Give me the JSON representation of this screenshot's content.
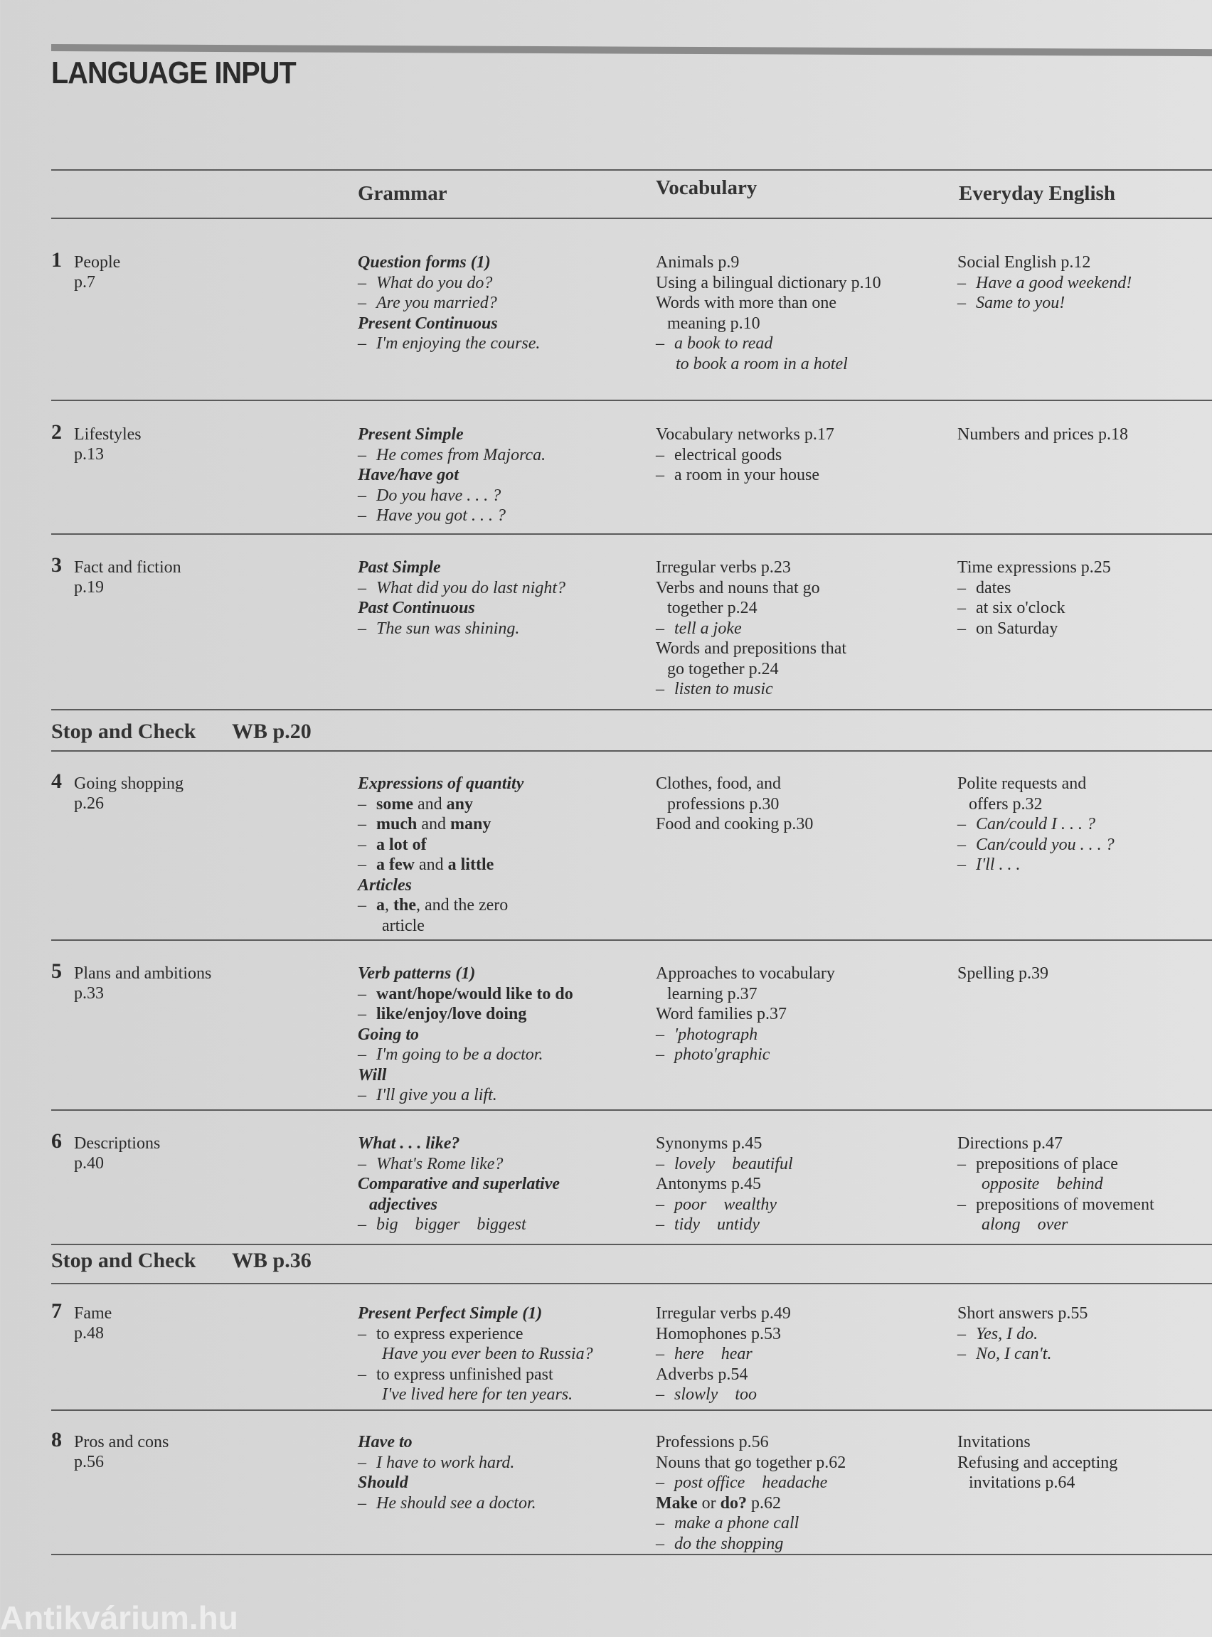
{
  "title": "LANGUAGE INPUT",
  "headers": {
    "grammar": "Grammar",
    "vocabulary": "Vocabulary",
    "everyday": "Everyday English"
  },
  "watermark": "Antikvárium.hu",
  "units": [
    {
      "num": "1",
      "title": "People",
      "page": "p.7",
      "grammar": [
        {
          "p": [
            [
              "Question forms (1)",
              "bi"
            ]
          ]
        },
        {
          "d": true,
          "p": [
            [
              "What do you do?",
              "i"
            ]
          ]
        },
        {
          "d": true,
          "p": [
            [
              "Are you married?",
              "i"
            ]
          ]
        },
        {
          "p": [
            [
              "Present Continuous",
              "bi"
            ]
          ]
        },
        {
          "d": true,
          "p": [
            [
              "I'm enjoying the course.",
              "i"
            ]
          ]
        }
      ],
      "vocabulary": [
        {
          "p": [
            [
              "Animals p.9",
              "n"
            ]
          ]
        },
        {
          "p": [
            [
              "Using a bilingual dictionary p.10",
              "n"
            ]
          ]
        },
        {
          "p": [
            [
              "Words with more than one",
              "n"
            ]
          ]
        },
        {
          "in": true,
          "p": [
            [
              "meaning p.10",
              "n"
            ]
          ]
        },
        {
          "d": true,
          "p": [
            [
              "a book to read",
              "i"
            ]
          ]
        },
        {
          "in": true,
          "p": [
            [
              "  to book a room in a hotel",
              "i"
            ]
          ]
        }
      ],
      "everyday": [
        {
          "p": [
            [
              "Social English p.12",
              "n"
            ]
          ]
        },
        {
          "d": true,
          "p": [
            [
              "Have a good weekend!",
              "i"
            ]
          ]
        },
        {
          "d": true,
          "p": [
            [
              "Same to you!",
              "i"
            ]
          ]
        }
      ]
    },
    {
      "num": "2",
      "title": "Lifestyles",
      "page": "p.13",
      "grammar": [
        {
          "p": [
            [
              "Present Simple",
              "bi"
            ]
          ]
        },
        {
          "d": true,
          "p": [
            [
              "He comes from Majorca.",
              "i"
            ]
          ]
        },
        {
          "p": [
            [
              "Have/have got",
              "bi"
            ]
          ]
        },
        {
          "d": true,
          "p": [
            [
              "Do you have . . . ?",
              "i"
            ]
          ]
        },
        {
          "d": true,
          "p": [
            [
              "Have you got . . . ?",
              "i"
            ]
          ]
        }
      ],
      "vocabulary": [
        {
          "p": [
            [
              "Vocabulary networks p.17",
              "n"
            ]
          ]
        },
        {
          "d": true,
          "p": [
            [
              "electrical goods",
              "n"
            ]
          ]
        },
        {
          "d": true,
          "p": [
            [
              "a room in your house",
              "n"
            ]
          ]
        }
      ],
      "everyday": [
        {
          "p": [
            [
              "Numbers and prices p.18",
              "n"
            ]
          ]
        }
      ]
    },
    {
      "num": "3",
      "title": "Fact and fiction",
      "page": "p.19",
      "grammar": [
        {
          "p": [
            [
              "Past Simple",
              "bi"
            ]
          ]
        },
        {
          "d": true,
          "p": [
            [
              "What did you do last night?",
              "i"
            ]
          ]
        },
        {
          "p": [
            [
              "Past Continuous",
              "bi"
            ]
          ]
        },
        {
          "d": true,
          "p": [
            [
              "The sun was shining.",
              "i"
            ]
          ]
        }
      ],
      "vocabulary": [
        {
          "p": [
            [
              "Irregular verbs p.23",
              "n"
            ]
          ]
        },
        {
          "p": [
            [
              "Verbs and nouns that go",
              "n"
            ]
          ]
        },
        {
          "in": true,
          "p": [
            [
              "together p.24",
              "n"
            ]
          ]
        },
        {
          "d": true,
          "p": [
            [
              "tell a joke",
              "i"
            ]
          ]
        },
        {
          "p": [
            [
              "Words and prepositions that",
              "n"
            ]
          ]
        },
        {
          "in": true,
          "p": [
            [
              "go together p.24",
              "n"
            ]
          ]
        },
        {
          "d": true,
          "p": [
            [
              "listen to music",
              "i"
            ]
          ]
        }
      ],
      "everyday": [
        {
          "p": [
            [
              "Time expressions p.25",
              "n"
            ]
          ]
        },
        {
          "d": true,
          "p": [
            [
              "dates",
              "n"
            ]
          ]
        },
        {
          "d": true,
          "p": [
            [
              "at six o'clock",
              "n"
            ]
          ]
        },
        {
          "d": true,
          "p": [
            [
              "on Saturday",
              "n"
            ]
          ]
        }
      ]
    },
    {
      "num": "4",
      "title": "Going shopping",
      "page": "p.26",
      "grammar": [
        {
          "p": [
            [
              "Expressions of quantity",
              "bi"
            ]
          ]
        },
        {
          "d": true,
          "p": [
            [
              "some",
              "b"
            ],
            [
              " and ",
              "n"
            ],
            [
              "any",
              "b"
            ]
          ]
        },
        {
          "d": true,
          "p": [
            [
              "much",
              "b"
            ],
            [
              " and ",
              "n"
            ],
            [
              "many",
              "b"
            ]
          ]
        },
        {
          "d": true,
          "p": [
            [
              "a lot of",
              "b"
            ]
          ]
        },
        {
          "d": true,
          "p": [
            [
              "a few",
              "b"
            ],
            [
              " and ",
              "n"
            ],
            [
              "a little",
              "b"
            ]
          ]
        },
        {
          "p": [
            [
              "Articles",
              "bi"
            ]
          ]
        },
        {
          "d": true,
          "p": [
            [
              "a",
              "b"
            ],
            [
              ", ",
              "n"
            ],
            [
              "the",
              "b"
            ],
            [
              ", and the zero",
              "n"
            ]
          ]
        },
        {
          "in": true,
          "p": [
            [
              "   article",
              "n"
            ]
          ]
        }
      ],
      "vocabulary": [
        {
          "p": [
            [
              "Clothes, food, and",
              "n"
            ]
          ]
        },
        {
          "in": true,
          "p": [
            [
              "professions p.30",
              "n"
            ]
          ]
        },
        {
          "p": [
            [
              "Food and cooking p.30",
              "n"
            ]
          ]
        }
      ],
      "everyday": [
        {
          "p": [
            [
              "Polite requests and",
              "n"
            ]
          ]
        },
        {
          "in": true,
          "p": [
            [
              "offers p.32",
              "n"
            ]
          ]
        },
        {
          "d": true,
          "p": [
            [
              "Can/could I . . . ?",
              "i"
            ]
          ]
        },
        {
          "d": true,
          "p": [
            [
              "Can/could you . . . ?",
              "i"
            ]
          ]
        },
        {
          "d": true,
          "p": [
            [
              "I'll . . .",
              "i"
            ]
          ]
        }
      ]
    },
    {
      "num": "5",
      "title": "Plans and ambitions",
      "page": "p.33",
      "grammar": [
        {
          "p": [
            [
              "Verb patterns (1)",
              "bi"
            ]
          ]
        },
        {
          "d": true,
          "p": [
            [
              "want/hope/would like to do",
              "b"
            ]
          ]
        },
        {
          "d": true,
          "p": [
            [
              "like/enjoy/love doing",
              "b"
            ]
          ]
        },
        {
          "p": [
            [
              "Going to",
              "bi"
            ]
          ]
        },
        {
          "d": true,
          "p": [
            [
              "I'm going to be a doctor.",
              "i"
            ]
          ]
        },
        {
          "p": [
            [
              "Will",
              "bi"
            ]
          ]
        },
        {
          "d": true,
          "p": [
            [
              "I'll give you a lift.",
              "i"
            ]
          ]
        }
      ],
      "vocabulary": [
        {
          "p": [
            [
              "Approaches to vocabulary",
              "n"
            ]
          ]
        },
        {
          "in": true,
          "p": [
            [
              "learning p.37",
              "n"
            ]
          ]
        },
        {
          "p": [
            [
              "Word families p.37",
              "n"
            ]
          ]
        },
        {
          "d": true,
          "p": [
            [
              "'photograph",
              "i"
            ]
          ]
        },
        {
          "d": true,
          "p": [
            [
              "photo'graphic",
              "i"
            ]
          ]
        }
      ],
      "everyday": [
        {
          "p": [
            [
              "Spelling p.39",
              "n"
            ]
          ]
        }
      ]
    },
    {
      "num": "6",
      "title": "Descriptions",
      "page": "p.40",
      "grammar": [
        {
          "p": [
            [
              "What . . . like?",
              "bi"
            ]
          ]
        },
        {
          "d": true,
          "p": [
            [
              "What's Rome like?",
              "i"
            ]
          ]
        },
        {
          "p": [
            [
              "Comparative and superlative",
              "bi"
            ]
          ]
        },
        {
          "in": true,
          "p": [
            [
              "adjectives",
              "bi"
            ]
          ]
        },
        {
          "d": true,
          "p": [
            [
              "big    bigger    biggest",
              "i"
            ]
          ]
        }
      ],
      "vocabulary": [
        {
          "p": [
            [
              "Synonyms p.45",
              "n"
            ]
          ]
        },
        {
          "d": true,
          "p": [
            [
              "lovely    beautiful",
              "i"
            ]
          ]
        },
        {
          "p": [
            [
              "Antonyms p.45",
              "n"
            ]
          ]
        },
        {
          "d": true,
          "p": [
            [
              "poor    wealthy",
              "i"
            ]
          ]
        },
        {
          "d": true,
          "p": [
            [
              "tidy    untidy",
              "i"
            ]
          ]
        }
      ],
      "everyday": [
        {
          "p": [
            [
              "Directions p.47",
              "n"
            ]
          ]
        },
        {
          "d": true,
          "p": [
            [
              "prepositions of place",
              "n"
            ]
          ]
        },
        {
          "in": true,
          "p": [
            [
              "   opposite    behind",
              "i"
            ]
          ]
        },
        {
          "d": true,
          "p": [
            [
              "prepositions of movement",
              "n"
            ]
          ]
        },
        {
          "in": true,
          "p": [
            [
              "   along    over",
              "i"
            ]
          ]
        }
      ]
    },
    {
      "num": "7",
      "title": "Fame",
      "page": "p.48",
      "grammar": [
        {
          "p": [
            [
              "Present Perfect Simple (1)",
              "bi"
            ]
          ]
        },
        {
          "d": true,
          "p": [
            [
              "to express experience",
              "n"
            ]
          ]
        },
        {
          "in": true,
          "p": [
            [
              "   Have you ever been to Russia?",
              "i"
            ]
          ]
        },
        {
          "d": true,
          "p": [
            [
              "to express unfinished past",
              "n"
            ]
          ]
        },
        {
          "in": true,
          "p": [
            [
              "   I've lived here for ten years.",
              "i"
            ]
          ]
        }
      ],
      "vocabulary": [
        {
          "p": [
            [
              "Irregular verbs p.49",
              "n"
            ]
          ]
        },
        {
          "p": [
            [
              "Homophones p.53",
              "n"
            ]
          ]
        },
        {
          "d": true,
          "p": [
            [
              "here    hear",
              "i"
            ]
          ]
        },
        {
          "p": [
            [
              "Adverbs p.54",
              "n"
            ]
          ]
        },
        {
          "d": true,
          "p": [
            [
              "slowly    too",
              "i"
            ]
          ]
        }
      ],
      "everyday": [
        {
          "p": [
            [
              "Short answers p.55",
              "n"
            ]
          ]
        },
        {
          "d": true,
          "p": [
            [
              "Yes, I do.",
              "i"
            ]
          ]
        },
        {
          "d": true,
          "p": [
            [
              "No, I can't.",
              "i"
            ]
          ]
        }
      ]
    },
    {
      "num": "8",
      "title": "Pros and cons",
      "page": "p.56",
      "grammar": [
        {
          "p": [
            [
              "Have to",
              "bi"
            ]
          ]
        },
        {
          "d": true,
          "p": [
            [
              "I have to work hard.",
              "i"
            ]
          ]
        },
        {
          "p": [
            [
              "Should",
              "bi"
            ]
          ]
        },
        {
          "d": true,
          "p": [
            [
              "He should see a doctor.",
              "i"
            ]
          ]
        }
      ],
      "vocabulary": [
        {
          "p": [
            [
              "Professions p.56",
              "n"
            ]
          ]
        },
        {
          "p": [
            [
              "Nouns that go together p.62",
              "n"
            ]
          ]
        },
        {
          "d": true,
          "p": [
            [
              "post office    headache",
              "i"
            ]
          ]
        },
        {
          "p": [
            [
              "Make",
              "b"
            ],
            [
              " or ",
              "n"
            ],
            [
              "do?",
              "b"
            ],
            [
              " p.62",
              "n"
            ]
          ]
        },
        {
          "d": true,
          "p": [
            [
              "make a phone call",
              "i"
            ]
          ]
        },
        {
          "d": true,
          "p": [
            [
              "do the shopping",
              "i"
            ]
          ]
        }
      ],
      "everyday": [
        {
          "p": [
            [
              "Invitations",
              "n"
            ]
          ]
        },
        {
          "p": [
            [
              "Refusing and accepting",
              "n"
            ]
          ]
        },
        {
          "in": true,
          "p": [
            [
              "invitations p.64",
              "n"
            ]
          ]
        }
      ]
    }
  ],
  "stop_checks": [
    {
      "label": "Stop and Check",
      "ref": "WB p.20"
    },
    {
      "label": "Stop and Check",
      "ref": "WB p.36"
    }
  ]
}
